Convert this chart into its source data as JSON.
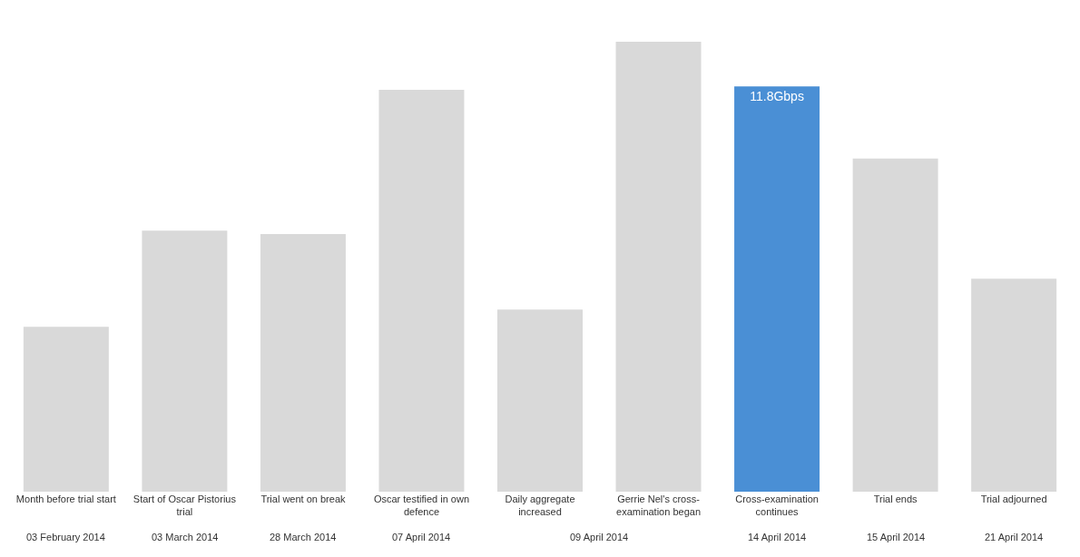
{
  "chart_data": {
    "type": "bar",
    "categories": [
      "Month before trial start",
      "Start of Oscar Pistorius trial",
      "Trial went on break",
      "Oscar testified in own defence",
      "Daily aggregate increased",
      "Gerrie Nel's cross-examination began",
      "Cross-examination continues",
      "Trial ends",
      "Trial adjourned"
    ],
    "values": [
      4.8,
      7.6,
      7.5,
      11.7,
      5.3,
      13.1,
      11.8,
      9.7,
      6.2
    ],
    "colors": [
      "#d9d9d9",
      "#d9d9d9",
      "#d9d9d9",
      "#d9d9d9",
      "#d9d9d9",
      "#d9d9d9",
      "#4a8fd5",
      "#d9d9d9",
      "#d9d9d9"
    ],
    "value_labels": [
      null,
      null,
      null,
      null,
      null,
      null,
      "11.8Gbps",
      null,
      null
    ],
    "annotations": [
      "03 February 2014",
      "03 March 2014",
      "28 March 2014",
      "07 April 2014",
      "09 April 2014",
      "14 April 2014",
      "15 April 2014",
      "21 April 2014"
    ],
    "legend": false
  }
}
